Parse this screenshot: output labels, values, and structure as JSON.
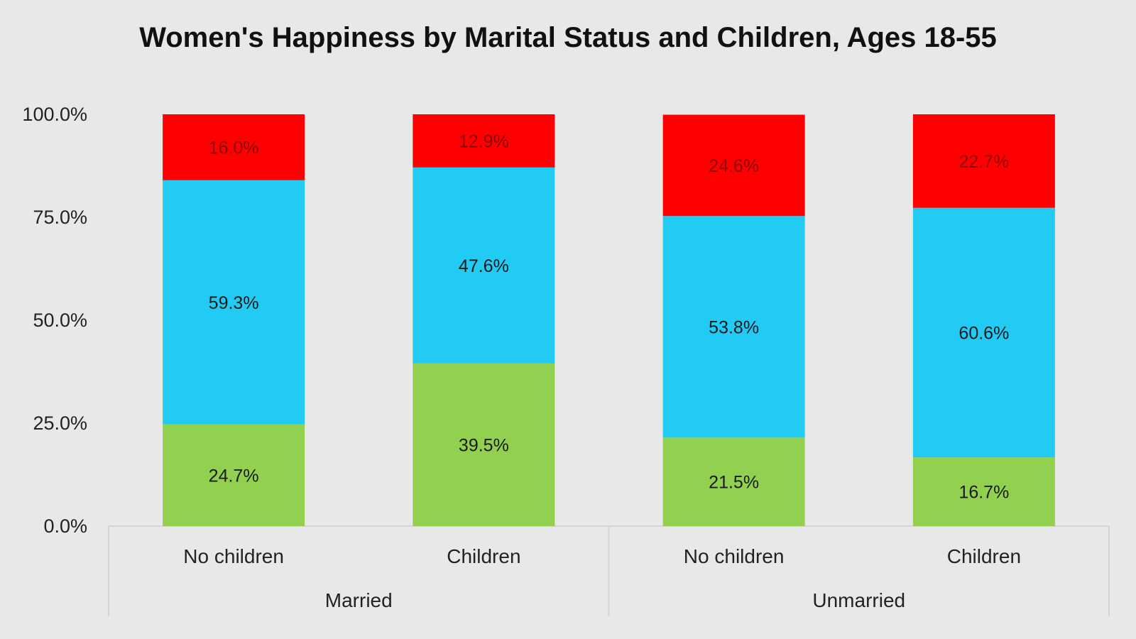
{
  "chart_data": {
    "type": "bar",
    "stacked": true,
    "title": "Women's Happiness by Marital Status and Children, Ages 18-55",
    "ylim": [
      0,
      100
    ],
    "yticks": [
      "0.0%",
      "25.0%",
      "50.0%",
      "75.0%",
      "100.0%"
    ],
    "ytick_values": [
      0,
      25,
      50,
      75,
      100
    ],
    "categories": [
      "No children",
      "Children",
      "No children",
      "Children"
    ],
    "groups": [
      {
        "label": "Married",
        "categories": [
          0,
          1
        ]
      },
      {
        "label": "Unmarried",
        "categories": [
          2,
          3
        ]
      }
    ],
    "series": [
      {
        "name": "green",
        "color": "#92d050",
        "values": [
          24.7,
          39.5,
          21.5,
          16.7
        ],
        "labels": [
          "24.7%",
          "39.5%",
          "21.5%",
          "16.7%"
        ]
      },
      {
        "name": "blue",
        "color": "#21cbf4",
        "values": [
          59.3,
          47.6,
          53.8,
          60.6
        ],
        "labels": [
          "59.3%",
          "47.6%",
          "53.8%",
          "60.6%"
        ]
      },
      {
        "name": "red",
        "color": "#ff0000",
        "values": [
          16.0,
          12.9,
          24.6,
          22.7
        ],
        "labels": [
          "16.0%",
          "12.9%",
          "24.6%",
          "22.7%"
        ]
      }
    ],
    "label_colors": [
      "#1a1a1a",
      "#1a1a1a",
      "#8b0000"
    ],
    "legend": "none",
    "grid": false
  }
}
